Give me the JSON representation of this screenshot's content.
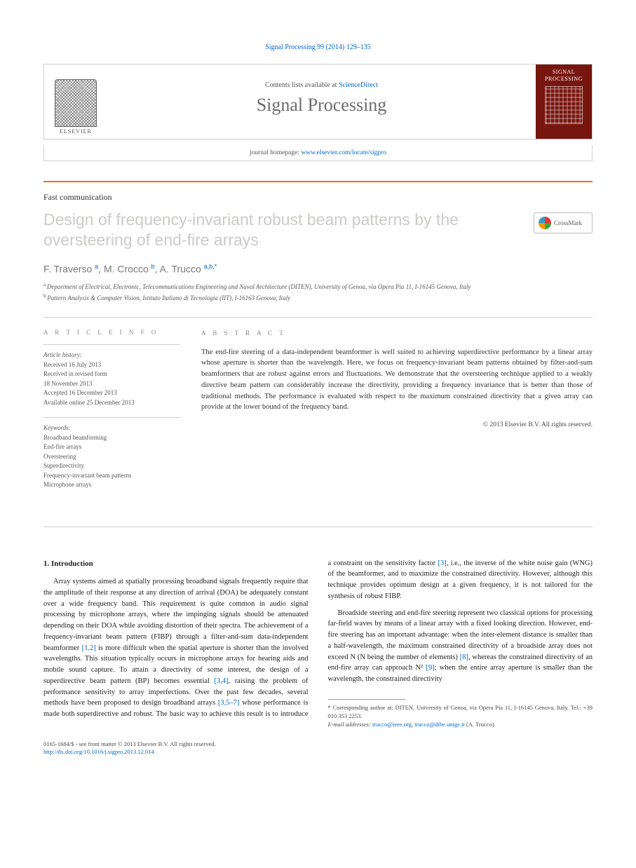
{
  "header": {
    "citation_prefix": "Signal Processing 99 (2014) 129–135",
    "contents_text": "Contents lists available at ",
    "contents_link": "ScienceDirect",
    "journal_name": "Signal Processing",
    "homepage_label": "journal homepage: ",
    "homepage_url": "www.elsevier.com/locate/sigpro",
    "publisher_logo_text": "ELSEVIER",
    "cover_title": "SIGNAL PROCESSING"
  },
  "article": {
    "type": "Fast communication",
    "title": "Design of frequency-invariant robust beam patterns by the oversteering of end-fire arrays",
    "crossmark_label": "CrossMark",
    "authors_html": "F. Traverso <sup>a</sup>, M. Crocco <sup>b</sup>, A. Trucco <sup>a,b,*</sup>",
    "affiliations": [
      {
        "marker": "a",
        "text": "Department of Electrical, Electronic, Telecommunications Engineering and Naval Architecture (DITEN), University of Genoa, via Opera Pia 11, I-16145 Genova, Italy"
      },
      {
        "marker": "b",
        "text": "Pattern Analysis & Computer Vision, Istituto Italiano di Tecnologia (IIT), I-16163 Genova, Italy"
      }
    ]
  },
  "info": {
    "heading": "A R T I C L E  I N F O",
    "history_label": "Article history:",
    "history": [
      "Received 16 July 2013",
      "Received in revised form",
      "18 November 2013",
      "Accepted 16 December 2013",
      "Available online 25 December 2013"
    ],
    "keywords_label": "Keywords:",
    "keywords": [
      "Broadband beamforming",
      "End-fire arrays",
      "Oversteering",
      "Superdirectivity",
      "Frequency-invariant beam patterns",
      "Microphone arrays"
    ]
  },
  "abstract": {
    "heading": "A B S T R A C T",
    "text": "The end-fire steering of a data-independent beamformer is well suited to achieving superdirective performance by a linear array whose aperture is shorter than the wavelength. Here, we focus on frequency-invariant beam patterns obtained by filter-and-sum beamformers that are robust against errors and fluctuations. We demonstrate that the oversteering technique applied to a weakly directive beam pattern can considerably increase the directivity, providing a frequency invariance that is better than those of traditional methods. The performance is evaluated with respect to the maximum constrained directivity that a given array can provide at the lower bound of the frequency band.",
    "copyright": "© 2013 Elsevier B.V. All rights reserved."
  },
  "body": {
    "section_number": "1.",
    "section_title": "Introduction",
    "para1": "Array systems aimed at spatially processing broadband signals frequently require that the amplitude of their response at any direction of arrival (DOA) be adequately constant over a wide frequency band. This requirement is quite common in audio signal processing by microphone arrays, where the impinging signals should be attenuated depending on their DOA while avoiding distortion of their spectra. The achievement of a frequency-invariant beam pattern (FIBP) through a filter-and-sum data-independent beamformer ",
    "para1_ref1": "[1,2]",
    "para1_cont": " is more difficult when the spatial aperture is shorter than the involved wavelengths. This situation typically occurs in microphone arrays for hearing aids and mobile sound capture. To attain a directivity of some interest, the design of a superdirective beam pattern (BP) becomes essential ",
    "para1_ref2": "[3,4]",
    "para1_cont2": ", raising the problem of performance sensitivity to array imperfections. Over the past few decades, several methods have been proposed to design broadband arrays ",
    "para1_ref3": "[3,5–7]",
    "para1_cont3": " whose performance is made both superdirective and robust. The basic way to achieve this result is to introduce a constraint on the sensitivity factor ",
    "para1_ref4": "[3]",
    "para1_cont4": ", i.e., the inverse of the white noise gain (WNG) of the beamformer, and to maximize the constrained directivity. However, although this technique provides optimum design at a given frequency, it is not tailored for the synthesis of robust FIBP.",
    "para2": "Broadside steering and end-fire steering represent two classical options for processing far-field waves by means of a linear array with a fixed looking direction. However, end-fire steering has an important advantage: when the inter-element distance is smaller than a half-wavelength, the maximum constrained directivity of a broadside array does not exceed N (N being the number of elements) ",
    "para2_ref1": "[8]",
    "para2_cont": ", whereas the constrained directivity of an end-fire array can approach N² ",
    "para2_ref2": "[9]",
    "para2_cont2": "; when the entire array aperture is smaller than the wavelength, the constrained directivity"
  },
  "footnotes": {
    "corresponding": "* Corresponding author at: DITEN, University of Genoa, via Opera Pia 11, I-16145 Genova, Italy. Tel.: +39 010 353 2253.",
    "email_label": "E-mail addresses: ",
    "email1": "trucco@ieee.org",
    "email_sep": ", ",
    "email2": "trucco@dibe.unige.it",
    "email_author": " (A. Trucco)."
  },
  "footer": {
    "issn_line": "0165-1684/$ - see front matter © 2013 Elsevier B.V. All rights reserved.",
    "doi": "http://dx.doi.org/10.1016/j.sigpro.2013.12.014"
  },
  "colors": {
    "accent_orange": "#e9711c",
    "link_blue": "#0066cc",
    "title_gray": "#bfc1bd",
    "cover_red": "#77160f"
  }
}
